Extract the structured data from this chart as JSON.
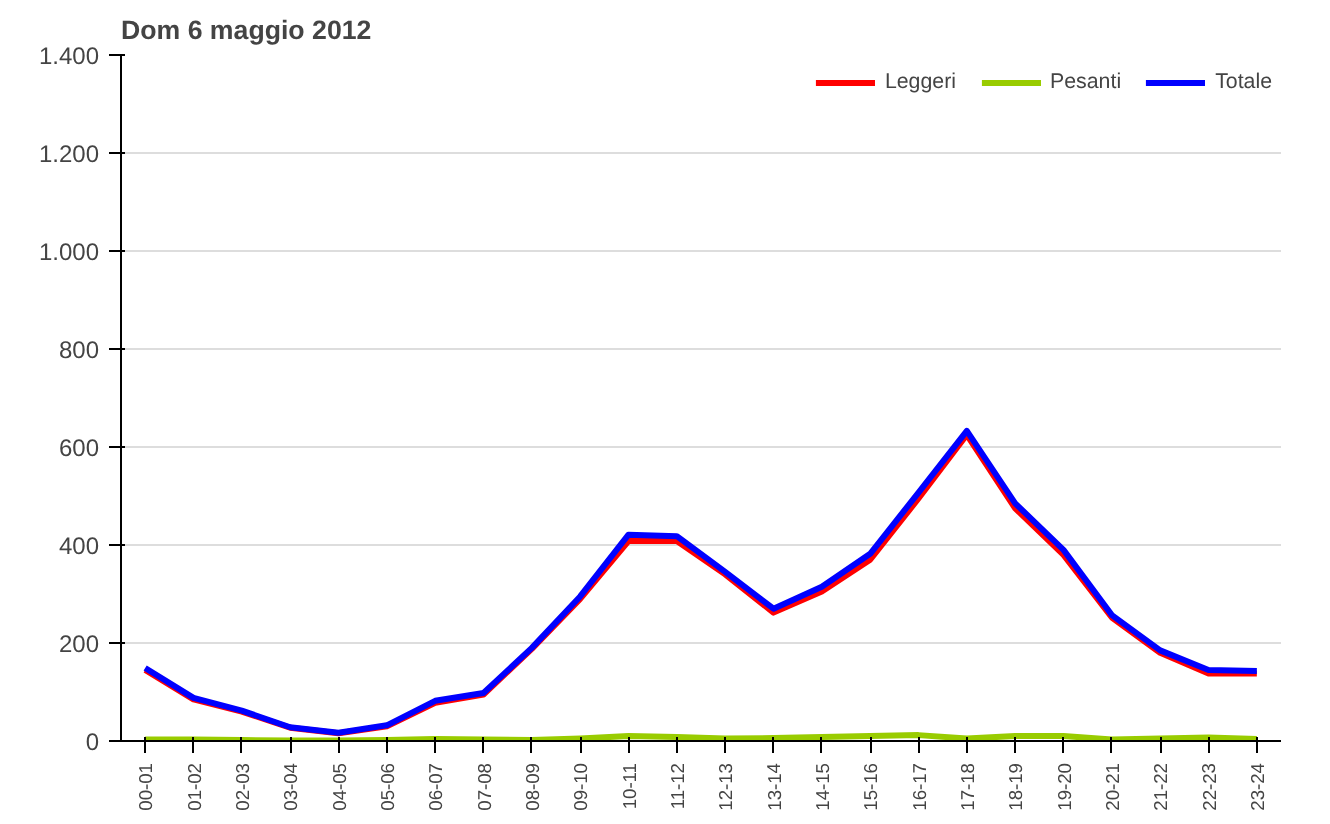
{
  "chart_data": {
    "type": "line",
    "title": "Dom 6 maggio 2012",
    "categories": [
      "00-01",
      "01-02",
      "02-03",
      "03-04",
      "04-05",
      "05-06",
      "06-07",
      "07-08",
      "08-09",
      "09-10",
      "10-11",
      "11-12",
      "12-13",
      "13-14",
      "14-15",
      "15-16",
      "16-17",
      "17-18",
      "18-19",
      "19-20",
      "20-21",
      "21-22",
      "22-23",
      "23-24"
    ],
    "series": [
      {
        "name": "Leggeri",
        "color": "#ff0000",
        "values": [
          145,
          85,
          60,
          27,
          16,
          30,
          78,
          95,
          188,
          290,
          408,
          408,
          340,
          262,
          305,
          370,
          495,
          625,
          475,
          380,
          252,
          180,
          138,
          138
        ]
      },
      {
        "name": "Pesanti",
        "color": "#99cc00",
        "values": [
          3,
          3,
          2,
          1,
          1,
          2,
          4,
          3,
          2,
          5,
          10,
          8,
          5,
          6,
          8,
          10,
          12,
          5,
          10,
          10,
          3,
          5,
          7,
          4
        ]
      },
      {
        "name": "Totale",
        "color": "#0000ff",
        "values": [
          149,
          88,
          62,
          28,
          17,
          32,
          82,
          98,
          190,
          295,
          421,
          418,
          345,
          270,
          315,
          382,
          507,
          633,
          485,
          390,
          257,
          185,
          145,
          143
        ]
      }
    ],
    "ylim": [
      0,
      1400
    ],
    "yticks": [
      0,
      {
        "value": 200,
        "label": "200"
      },
      {
        "value": 400,
        "label": "400"
      },
      {
        "value": 600,
        "label": "600"
      },
      {
        "value": 800,
        "label": "800"
      },
      {
        "value": 1000,
        "label": "1.000"
      },
      {
        "value": 1200,
        "label": "1.200"
      },
      {
        "value": 1400,
        "label": "1.400"
      }
    ],
    "grid": "y",
    "legend": "top right",
    "marker": "none",
    "line_style": "solid"
  }
}
